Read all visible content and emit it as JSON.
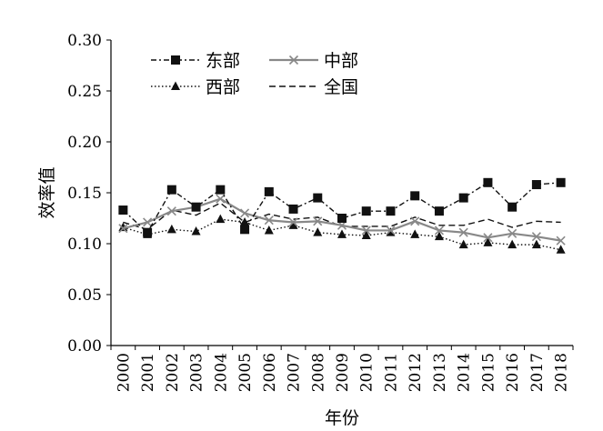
{
  "chart_data": {
    "type": "line",
    "title": "",
    "xlabel": "年份",
    "ylabel": "效率值",
    "ylim": [
      0,
      0.3
    ],
    "yticks": [
      "0.00",
      "0.05",
      "0.10",
      "0.15",
      "0.20",
      "0.25",
      "0.30"
    ],
    "categories": [
      "2000",
      "2001",
      "2002",
      "2003",
      "2004",
      "2005",
      "2006",
      "2007",
      "2008",
      "2009",
      "2010",
      "2011",
      "2012",
      "2013",
      "2014",
      "2015",
      "2016",
      "2017",
      "2018"
    ],
    "grid": false,
    "legend_position": "top-left",
    "series": [
      {
        "name": "东部",
        "style": "dash-dot",
        "marker": "square",
        "color": "#111111",
        "values": [
          0.133,
          0.111,
          0.153,
          0.136,
          0.153,
          0.114,
          0.151,
          0.134,
          0.145,
          0.125,
          0.132,
          0.132,
          0.147,
          0.132,
          0.145,
          0.16,
          0.136,
          0.158,
          0.16
        ]
      },
      {
        "name": "中部",
        "style": "solid",
        "marker": "x",
        "color": "#888888",
        "values": [
          0.115,
          0.121,
          0.132,
          0.136,
          0.144,
          0.13,
          0.123,
          0.121,
          0.122,
          0.118,
          0.113,
          0.113,
          0.122,
          0.113,
          0.111,
          0.106,
          0.11,
          0.107,
          0.103
        ]
      },
      {
        "name": "西部",
        "style": "dotted",
        "marker": "triangle",
        "color": "#111111",
        "values": [
          0.116,
          0.109,
          0.114,
          0.112,
          0.124,
          0.121,
          0.113,
          0.118,
          0.111,
          0.109,
          0.108,
          0.111,
          0.109,
          0.107,
          0.099,
          0.101,
          0.099,
          0.099,
          0.094
        ]
      },
      {
        "name": "全国",
        "style": "dashed",
        "marker": "none",
        "color": "#111111",
        "values": [
          0.121,
          0.114,
          0.133,
          0.128,
          0.14,
          0.121,
          0.129,
          0.124,
          0.126,
          0.117,
          0.117,
          0.117,
          0.126,
          0.118,
          0.118,
          0.124,
          0.116,
          0.122,
          0.121
        ]
      }
    ]
  }
}
